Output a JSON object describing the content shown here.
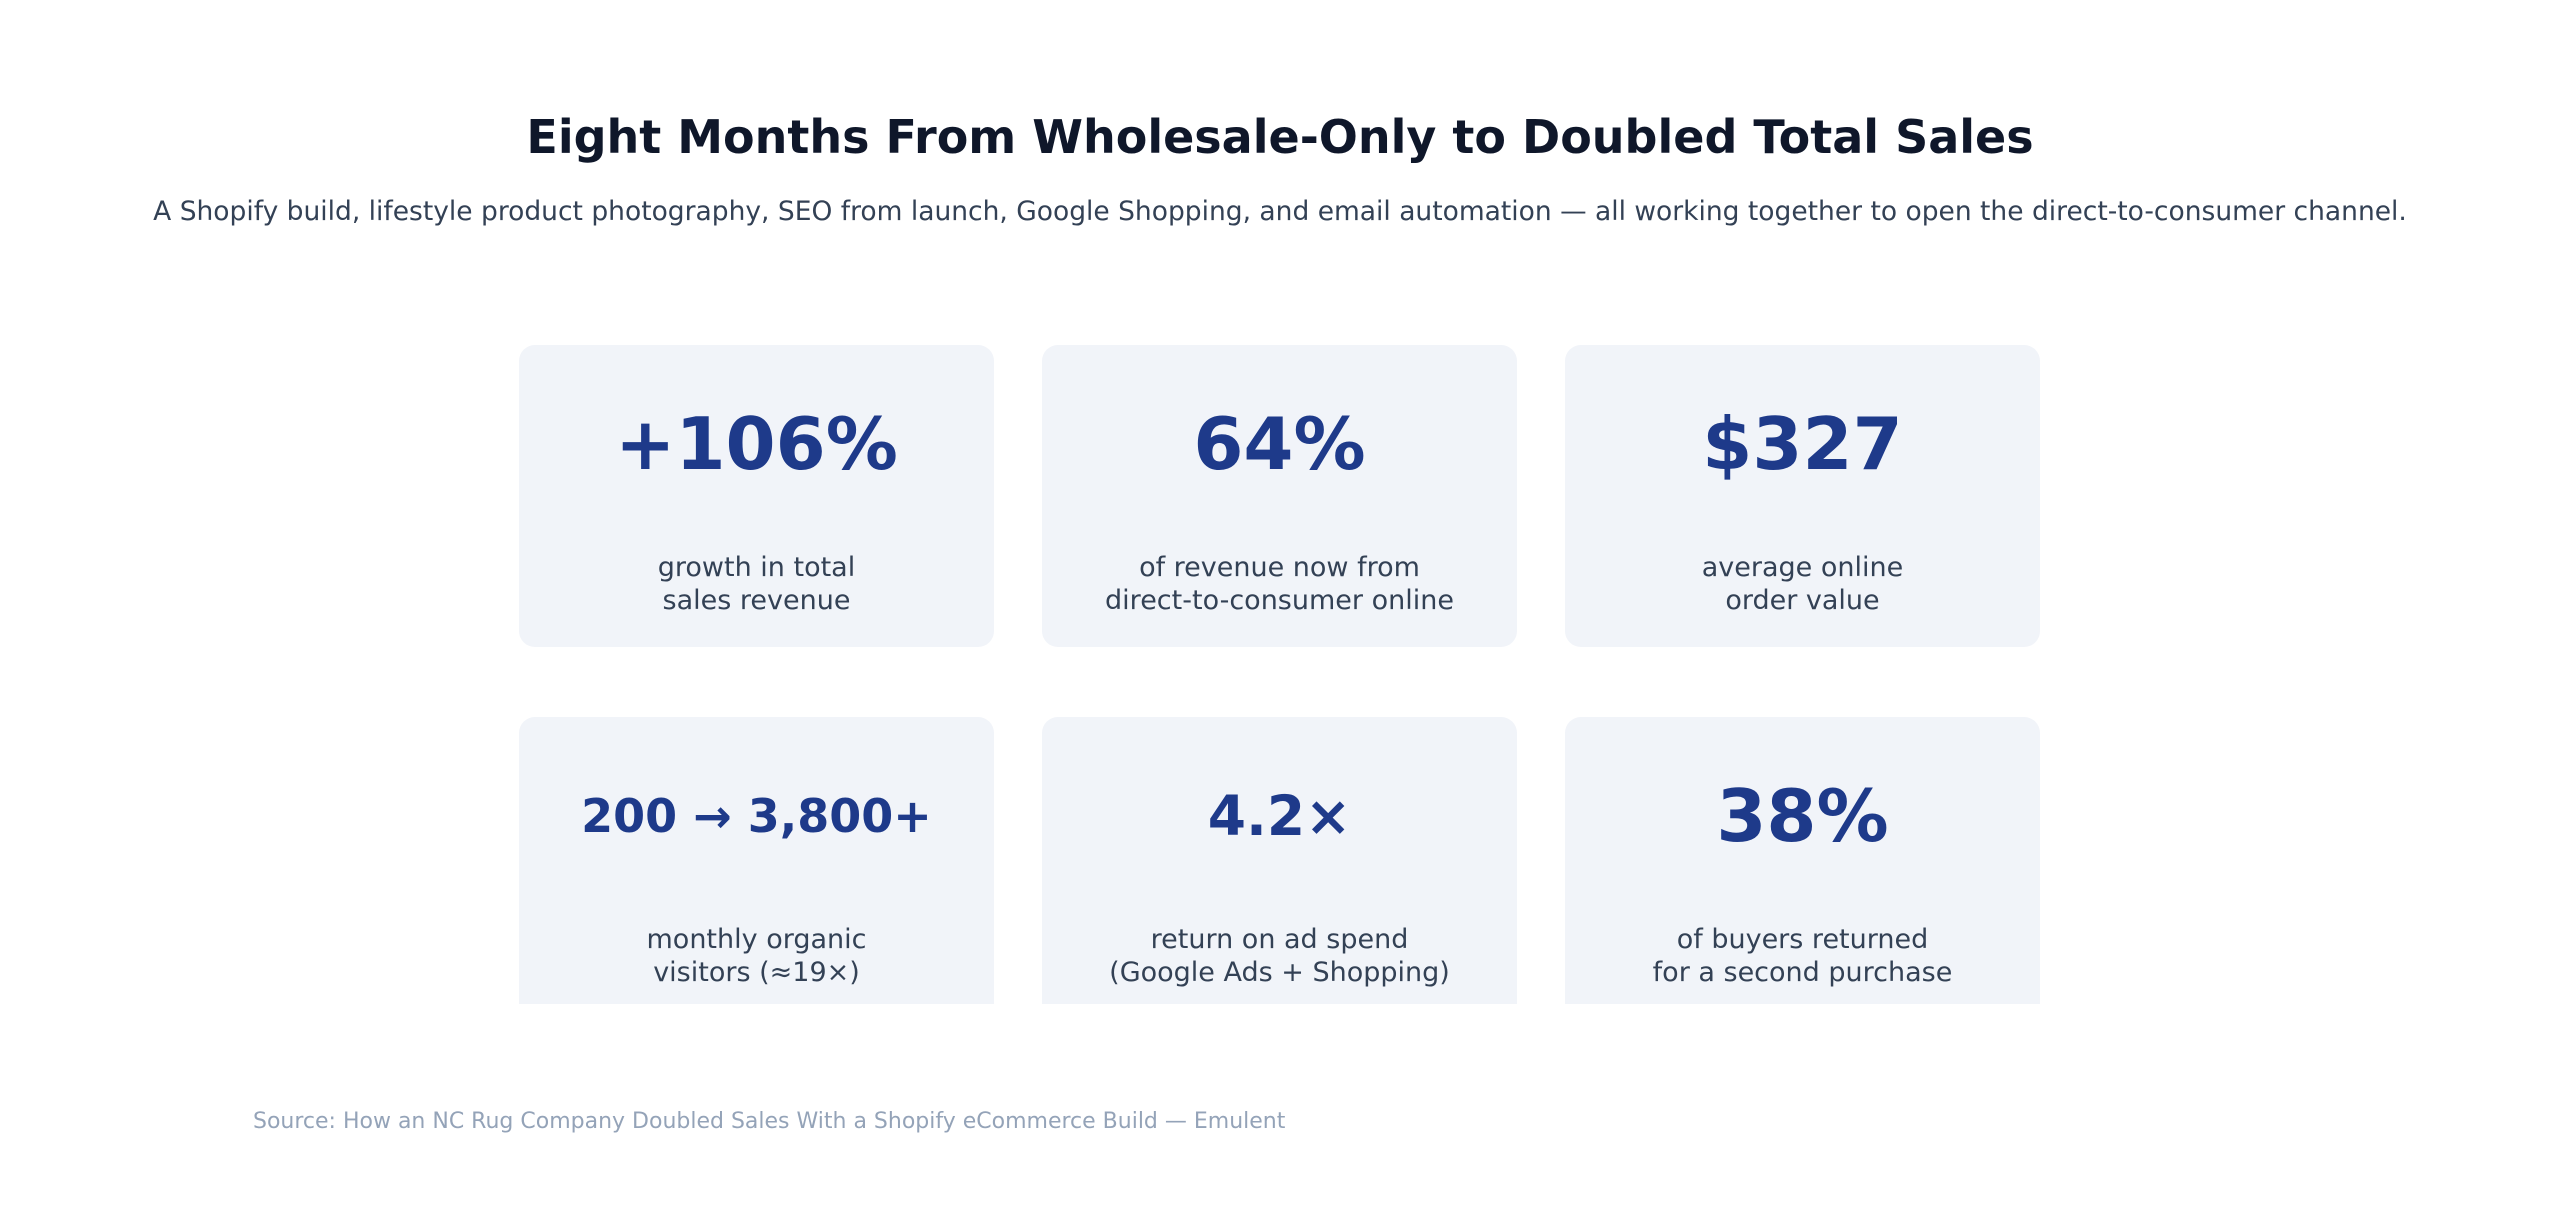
{
  "header": {
    "title": "Eight Months From Wholesale-Only to Doubled Total Sales",
    "subtitle": "A Shopify build, lifestyle product photography, SEO from launch, Google Shopping, and email automation — all working together to open the direct-to-consumer channel."
  },
  "stats": [
    {
      "value": "+106%",
      "label": [
        "growth in total",
        "sales revenue"
      ]
    },
    {
      "value": "64%",
      "label": [
        "of revenue now from",
        "direct-to-consumer online"
      ]
    },
    {
      "value": "$327",
      "label": [
        "average online",
        "order value"
      ]
    },
    {
      "value": "200 → 3,800+",
      "label": [
        "monthly organic",
        "visitors (≈19×)"
      ]
    },
    {
      "value": "4.2×",
      "label": [
        "return on ad spend",
        "(Google Ads + Shopping)"
      ]
    },
    {
      "value": "38%",
      "label": [
        "of buyers returned",
        "for a second purchase"
      ]
    }
  ],
  "footer": {
    "source": "Source: How an NC Rug Company Doubled Sales With a Shopify eCommerce Build — Emulent"
  }
}
